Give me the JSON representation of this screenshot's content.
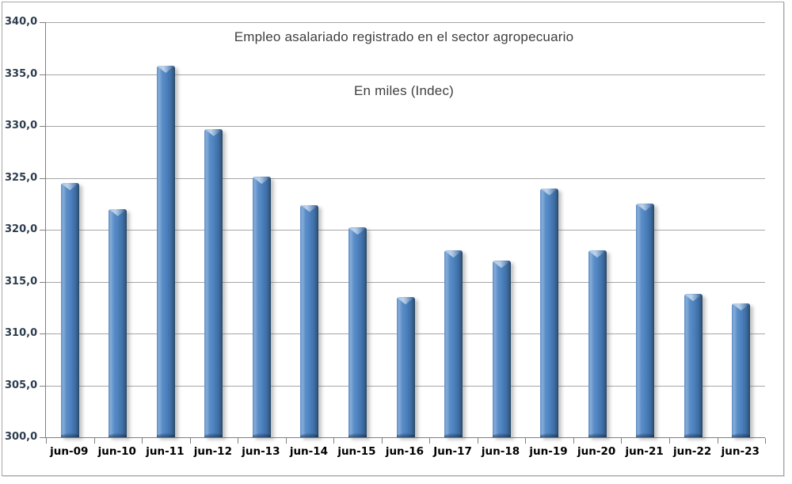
{
  "chart_data": {
    "type": "bar",
    "title": "Empleo asalariado registrado en el sector agropecuario",
    "subtitle": "En miles (Indec)",
    "categories": [
      "jun-09",
      "jun-10",
      "jun-11",
      "jun-12",
      "jun-13",
      "jun-14",
      "jun-15",
      "jun-16",
      "Jun-17",
      "jun-18",
      "jun-19",
      "jun-20",
      "jun-21",
      "jun-22",
      "jun-23"
    ],
    "values": [
      324.5,
      322.0,
      335.8,
      329.7,
      325.1,
      322.4,
      320.2,
      313.5,
      318.0,
      317.0,
      324.0,
      318.0,
      322.5,
      313.8,
      312.9
    ],
    "xlabel": "",
    "ylabel": "",
    "ylim": [
      300,
      340
    ],
    "ytick_step": 5,
    "ytick_labels": [
      "300,0",
      "305,0",
      "310,0",
      "315,0",
      "320,0",
      "325,0",
      "330,0",
      "335,0",
      "340,0"
    ],
    "grid": true,
    "legend": false,
    "colors": {
      "bar_fill": "#4a80bd",
      "bar_edge_dark": "#27425f",
      "bar_highlight": "#9dc3e6",
      "gridline": "#a6a6a6",
      "axis_line": "#808080",
      "title_text": "#3f3f3f",
      "y_label_text": "#2e3d4e",
      "x_label_text": "#000000",
      "frame_border": "#a6a6a6",
      "background": "#ffffff"
    }
  }
}
